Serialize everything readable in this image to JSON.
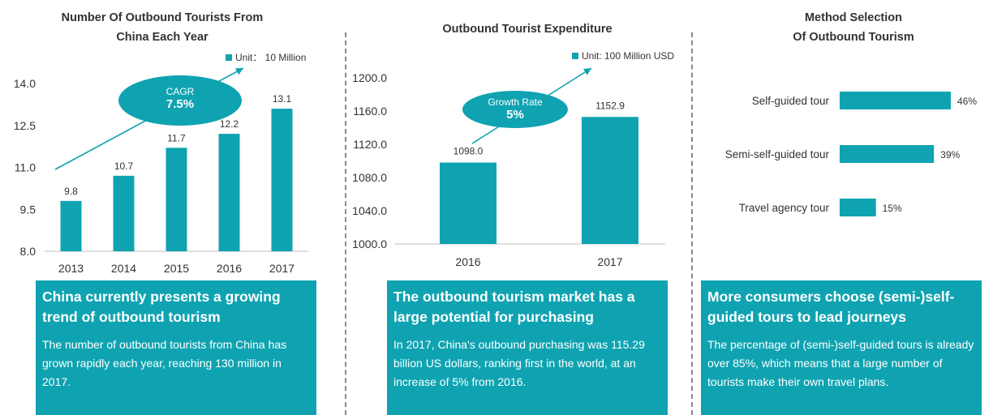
{
  "colors": {
    "accent": "#0fa3b1",
    "text": "#333333",
    "axis": "#bfbfbf"
  },
  "panel1": {
    "title_line1": "Number Of Outbound Tourists From",
    "title_line2": "China Each Year",
    "legend": "Unit： 10 Million",
    "badge_label": "CAGR",
    "badge_value": "7.5%",
    "box_heading": "China currently presents a growing trend of outbound tourism",
    "box_body": "The number of outbound tourists from China has grown rapidly each year, reaching 130 million in 2017."
  },
  "panel2": {
    "title": "Outbound Tourist Expenditure",
    "legend": "Unit: 100 Million USD",
    "badge_label": "Growth Rate",
    "badge_value": "5%",
    "box_heading": "The outbound tourism market has a large potential for purchasing",
    "box_body": "In 2017, China's outbound purchasing was 115.29 billion US dollars, ranking first in the world, at an increase of 5% from 2016."
  },
  "panel3": {
    "title_line1": "Method Selection",
    "title_line2": "Of Outbound Tourism",
    "box_heading": "More consumers choose (semi-)self-guided tours to lead journeys",
    "box_body": "The percentage of (semi-)self-guided tours is already over 85%, which means that a large number of tourists make their own travel plans."
  },
  "chart_data": [
    {
      "type": "bar",
      "categories": [
        "2013",
        "2014",
        "2015",
        "2016",
        "2017"
      ],
      "values": [
        9.8,
        10.7,
        11.7,
        12.2,
        13.1
      ],
      "data_labels": [
        "9.8",
        "10.7",
        "11.7",
        "12.2",
        "13.1"
      ],
      "ylim": [
        8.0,
        14.0
      ],
      "y_ticks": [
        "8.0",
        "9.5",
        "11.0",
        "12.5",
        "14.0"
      ],
      "grid": false
    },
    {
      "type": "bar",
      "categories": [
        "2016",
        "2017"
      ],
      "values": [
        1098.0,
        1152.9
      ],
      "data_labels": [
        "1098.0",
        "1152.9"
      ],
      "ylim": [
        1000.0,
        1200.0
      ],
      "y_ticks": [
        "1000.0",
        "1040.0",
        "1080.0",
        "1120.0",
        "1160.0",
        "1200.0"
      ],
      "grid": false
    },
    {
      "type": "bar",
      "orientation": "horizontal",
      "categories": [
        "Self-guided tour",
        "Semi-self-guided tour",
        "Travel agency tour"
      ],
      "values": [
        46,
        39,
        15
      ],
      "data_labels": [
        "46%",
        "39%",
        "15%"
      ],
      "grid": false
    }
  ]
}
